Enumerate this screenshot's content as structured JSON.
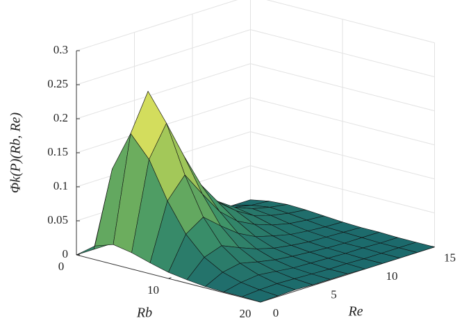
{
  "chart_data": {
    "type": "surface",
    "xlabel": "Rb",
    "ylabel": "Re",
    "zlabel": "Φk(P)(Rb, Re)",
    "x": [
      0,
      2,
      4,
      6,
      8,
      10,
      12,
      14,
      16,
      18,
      20
    ],
    "y": [
      0,
      1.5,
      3,
      4.5,
      6,
      7.5,
      9,
      10.5,
      12,
      13.5,
      15
    ],
    "z": [
      [
        0,
        0,
        0,
        0,
        0,
        0,
        0,
        0,
        0,
        0,
        0
      ],
      [
        0.02,
        0.125,
        0.162,
        0.117,
        0.075,
        0.047,
        0.03,
        0.018,
        0.012,
        0.007,
        0.005
      ],
      [
        0.029,
        0.184,
        0.238,
        0.172,
        0.11,
        0.069,
        0.044,
        0.027,
        0.017,
        0.011,
        0.007
      ],
      [
        0.024,
        0.153,
        0.198,
        0.142,
        0.091,
        0.057,
        0.037,
        0.022,
        0.014,
        0.009,
        0.006
      ],
      [
        0.016,
        0.099,
        0.129,
        0.093,
        0.059,
        0.037,
        0.024,
        0.015,
        0.009,
        0.006,
        0.004
      ],
      [
        0.009,
        0.057,
        0.074,
        0.053,
        0.034,
        0.021,
        0.014,
        0.008,
        0.005,
        0.003,
        0.002
      ],
      [
        0.005,
        0.03,
        0.039,
        0.028,
        0.018,
        0.011,
        0.007,
        0.004,
        0.003,
        0.002,
        0.001
      ],
      [
        0.002,
        0.015,
        0.02,
        0.014,
        0.009,
        0.006,
        0.004,
        0.002,
        0.001,
        0.001,
        0.001
      ],
      [
        0.001,
        0.007,
        0.01,
        0.007,
        0.004,
        0.003,
        0.002,
        0.001,
        0.001,
        0,
        0
      ],
      [
        0.001,
        0.003,
        0.004,
        0.003,
        0.002,
        0.001,
        0.001,
        0,
        0,
        0,
        0
      ],
      [
        0,
        0.001,
        0.002,
        0.001,
        0.001,
        0.001,
        0,
        0,
        0,
        0,
        0
      ]
    ],
    "xlim": [
      0,
      20
    ],
    "ylim": [
      0,
      15
    ],
    "zlim": [
      0,
      0.3
    ],
    "xticks": [
      0,
      10,
      20
    ],
    "yticks": [
      0,
      5,
      10,
      15
    ],
    "zticks": [
      0,
      0.05,
      0.1,
      0.15,
      0.2,
      0.25,
      0.3
    ],
    "colormap": [
      "#1c6a6c",
      "#3f9468",
      "#86bb58",
      "#c9d85a",
      "#f3ee66"
    ],
    "grid": true
  }
}
